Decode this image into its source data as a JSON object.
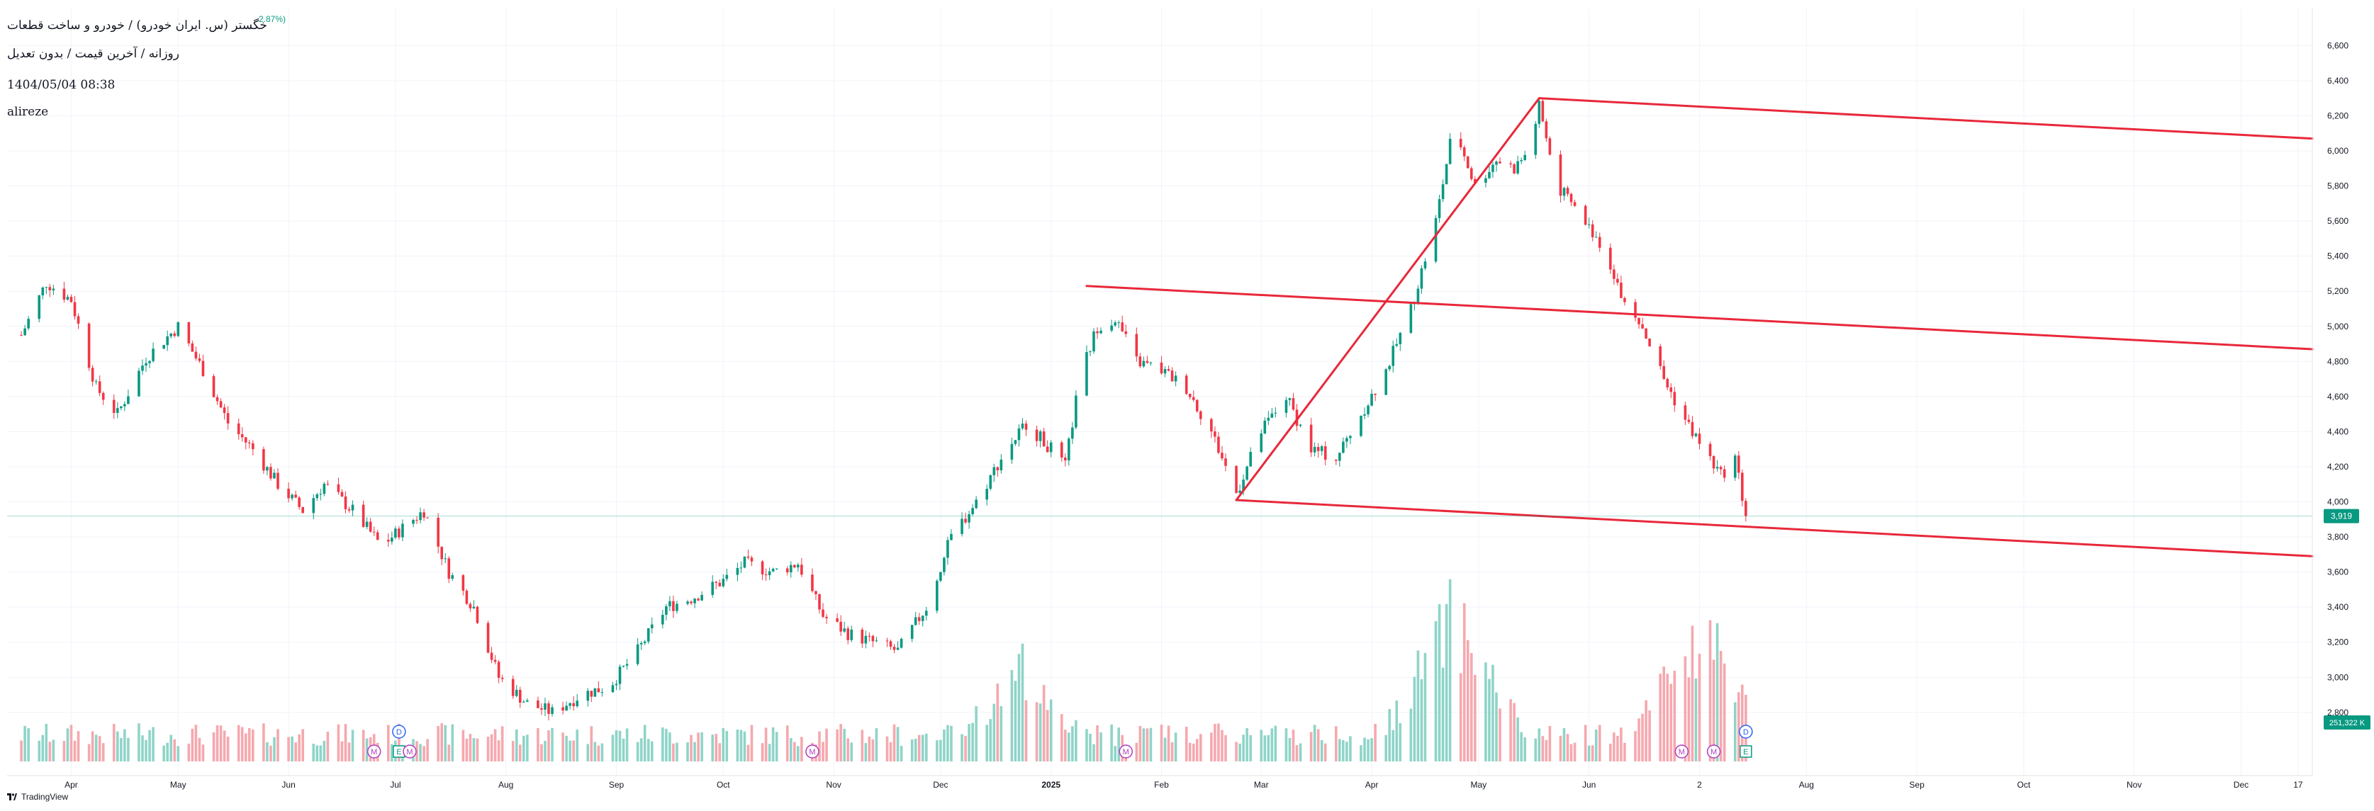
{
  "header": {
    "title": "خگستر (س. ایران خودرو) / خودرو و ساخت قطعات",
    "subtitle": "روزانه / آخرین قیمت / بدون تعدیل",
    "datetime": "1404/05/04 08:38",
    "user": "alireze",
    "change": "2.87%)"
  },
  "branding": {
    "logo_text": "TradingView"
  },
  "colors": {
    "up": "#089981",
    "down": "#f23645",
    "up_volume": "#8fd4c8",
    "down_volume": "#f5a8ae",
    "trendline": "#e8283a",
    "grid": "#f0f3fa",
    "axis_text": "#131722"
  },
  "price_scale": {
    "labels": [
      "2,800",
      "3,000",
      "3,200",
      "3,400",
      "3,600",
      "3,800",
      "4,000",
      "4,200",
      "4,400",
      "4,600",
      "4,800",
      "5,000",
      "5,200",
      "5,400",
      "5,600",
      "5,800",
      "6,000",
      "6,200",
      "6,400",
      "6,600"
    ],
    "last_price_label": "3,919",
    "last_volume_label": "251,322 K"
  },
  "time_scale": {
    "labels": [
      "Apr",
      "May",
      "Jun",
      "Jul",
      "Aug",
      "Sep",
      "Oct",
      "Nov",
      "Dec",
      "2025",
      "Feb",
      "Mar",
      "Apr",
      "May",
      "Jun",
      "2",
      "Aug",
      "Sep",
      "Oct",
      "Nov",
      "Dec",
      "17"
    ]
  },
  "events": [
    {
      "type": "dividend",
      "label": "D",
      "date": "2024-07-02"
    },
    {
      "type": "earnings",
      "label": "E",
      "date": "2024-07-02"
    },
    {
      "type": "meeting",
      "label": "M",
      "date": "2024-06-25"
    },
    {
      "type": "meeting",
      "label": "M",
      "date": "2024-07-05"
    },
    {
      "type": "meeting",
      "label": "M",
      "date": "2024-10-26"
    },
    {
      "type": "meeting",
      "label": "M",
      "date": "2025-01-22"
    },
    {
      "type": "meeting",
      "label": "M",
      "date": "2025-06-27"
    },
    {
      "type": "meeting",
      "label": "M",
      "date": "2025-07-06"
    },
    {
      "type": "dividend",
      "label": "D",
      "date": "2025-07-15"
    },
    {
      "type": "earnings",
      "label": "E",
      "date": "2025-07-15"
    }
  ],
  "chart_data": {
    "type": "candlestick",
    "symbol": "خگستر",
    "ylim": [
      2750,
      6650
    ],
    "grid": true,
    "trendlines": [
      {
        "from": {
          "date": "2025-01-11",
          "price": 5230
        },
        "to": {
          "date": "2025-12-21",
          "price": 4870
        }
      },
      {
        "from": {
          "date": "2025-02-22",
          "price": 4010
        },
        "to": {
          "date": "2025-12-21",
          "price": 3690
        }
      },
      {
        "from": {
          "date": "2025-02-22",
          "price": 4010
        },
        "to": {
          "date": "2025-05-18",
          "price": 6300
        }
      },
      {
        "from": {
          "date": "2025-05-18",
          "price": 6300
        },
        "to": {
          "date": "2025-12-21",
          "price": 6070
        }
      }
    ],
    "close_path": [
      {
        "date": "2024-03-18",
        "price": 4950
      },
      {
        "date": "2024-03-25",
        "price": 5250
      },
      {
        "date": "2024-04-01",
        "price": 5150
      },
      {
        "date": "2024-04-08",
        "price": 4650
      },
      {
        "date": "2024-04-14",
        "price": 4500
      },
      {
        "date": "2024-04-22",
        "price": 4820
      },
      {
        "date": "2024-05-01",
        "price": 5000
      },
      {
        "date": "2024-05-08",
        "price": 4750
      },
      {
        "date": "2024-05-15",
        "price": 4450
      },
      {
        "date": "2024-05-22",
        "price": 4300
      },
      {
        "date": "2024-05-29",
        "price": 4100
      },
      {
        "date": "2024-06-05",
        "price": 3950
      },
      {
        "date": "2024-06-11",
        "price": 4100
      },
      {
        "date": "2024-06-19",
        "price": 3950
      },
      {
        "date": "2024-06-27",
        "price": 3750
      },
      {
        "date": "2024-07-03",
        "price": 3850
      },
      {
        "date": "2024-07-09",
        "price": 3950
      },
      {
        "date": "2024-07-16",
        "price": 3600
      },
      {
        "date": "2024-07-23",
        "price": 3400
      },
      {
        "date": "2024-07-30",
        "price": 3000
      },
      {
        "date": "2024-08-07",
        "price": 2850
      },
      {
        "date": "2024-08-14",
        "price": 2800
      },
      {
        "date": "2024-08-22",
        "price": 2900
      },
      {
        "date": "2024-08-30",
        "price": 2950
      },
      {
        "date": "2024-09-07",
        "price": 3150
      },
      {
        "date": "2024-09-15",
        "price": 3400
      },
      {
        "date": "2024-09-22",
        "price": 3450
      },
      {
        "date": "2024-10-01",
        "price": 3550
      },
      {
        "date": "2024-10-07",
        "price": 3650
      },
      {
        "date": "2024-10-15",
        "price": 3600
      },
      {
        "date": "2024-10-22",
        "price": 3650
      },
      {
        "date": "2024-10-29",
        "price": 3350
      },
      {
        "date": "2024-11-05",
        "price": 3250
      },
      {
        "date": "2024-11-12",
        "price": 3200
      },
      {
        "date": "2024-11-19",
        "price": 3150
      },
      {
        "date": "2024-11-27",
        "price": 3400
      },
      {
        "date": "2024-12-04",
        "price": 3800
      },
      {
        "date": "2024-12-11",
        "price": 4000
      },
      {
        "date": "2024-12-18",
        "price": 4250
      },
      {
        "date": "2024-12-25",
        "price": 4450
      },
      {
        "date": "2025-01-01",
        "price": 4300
      },
      {
        "date": "2025-01-05",
        "price": 4200
      },
      {
        "date": "2025-01-09",
        "price": 4700
      },
      {
        "date": "2025-01-14",
        "price": 5000
      },
      {
        "date": "2025-01-19",
        "price": 5050
      },
      {
        "date": "2025-01-25",
        "price": 4800
      },
      {
        "date": "2025-02-01",
        "price": 4750
      },
      {
        "date": "2025-02-08",
        "price": 4650
      },
      {
        "date": "2025-02-15",
        "price": 4400
      },
      {
        "date": "2025-02-22",
        "price": 4050
      },
      {
        "date": "2025-03-01",
        "price": 4400
      },
      {
        "date": "2025-03-08",
        "price": 4600
      },
      {
        "date": "2025-03-15",
        "price": 4300
      },
      {
        "date": "2025-03-22",
        "price": 4250
      },
      {
        "date": "2025-03-29",
        "price": 4500
      },
      {
        "date": "2025-04-05",
        "price": 4750
      },
      {
        "date": "2025-04-12",
        "price": 5100
      },
      {
        "date": "2025-04-19",
        "price": 5600
      },
      {
        "date": "2025-04-24",
        "price": 6150
      },
      {
        "date": "2025-04-30",
        "price": 5800
      },
      {
        "date": "2025-05-06",
        "price": 5950
      },
      {
        "date": "2025-05-11",
        "price": 5900
      },
      {
        "date": "2025-05-15",
        "price": 6000
      },
      {
        "date": "2025-05-18",
        "price": 6250
      },
      {
        "date": "2025-05-23",
        "price": 5800
      },
      {
        "date": "2025-05-29",
        "price": 5650
      },
      {
        "date": "2025-06-05",
        "price": 5450
      },
      {
        "date": "2025-06-10",
        "price": 5200
      },
      {
        "date": "2025-06-16",
        "price": 5000
      },
      {
        "date": "2025-06-22",
        "price": 4700
      },
      {
        "date": "2025-06-27",
        "price": 4500
      },
      {
        "date": "2025-07-03",
        "price": 4300
      },
      {
        "date": "2025-07-08",
        "price": 4150
      },
      {
        "date": "2025-07-12",
        "price": 4250
      },
      {
        "date": "2025-07-15",
        "price": 3919
      }
    ],
    "volume_peaks": [
      {
        "date": "2024-12-24",
        "volume_relative": 0.62
      },
      {
        "date": "2025-04-24",
        "volume_relative": 1.0
      },
      {
        "date": "2025-07-03",
        "volume_relative": 0.9
      }
    ]
  }
}
